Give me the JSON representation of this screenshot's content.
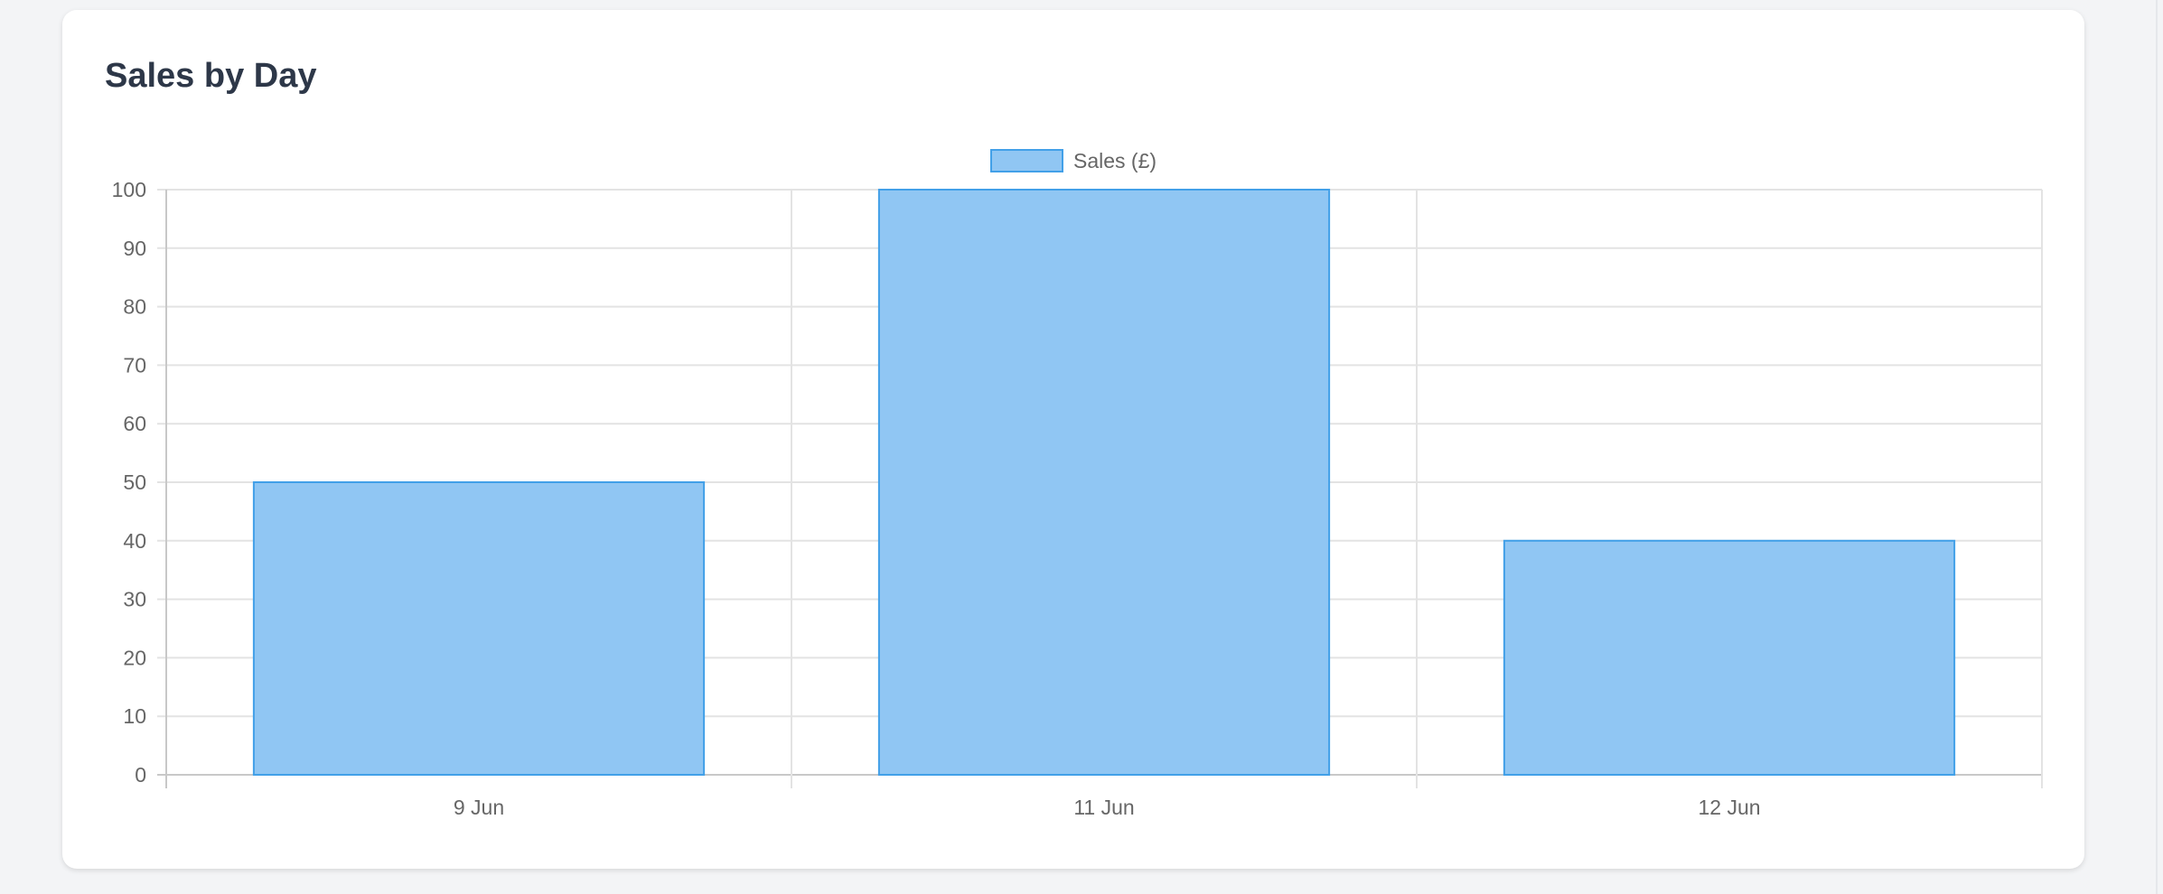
{
  "card": {
    "title": "Sales by Day"
  },
  "chart_data": {
    "type": "bar",
    "title": "",
    "categories": [
      "9 Jun",
      "11 Jun",
      "12 Jun"
    ],
    "series": [
      {
        "name": "Sales (£)",
        "values": [
          50,
          100,
          40
        ]
      }
    ],
    "ylim": [
      0,
      100
    ],
    "yticks": [
      0,
      10,
      20,
      30,
      40,
      50,
      60,
      70,
      80,
      90,
      100
    ],
    "grid": true,
    "legend": "top-center",
    "colors": {
      "fill": "#90c6f3",
      "border": "#42a0e8",
      "grid": "#e3e3e3",
      "tick_text": "#666666"
    }
  }
}
